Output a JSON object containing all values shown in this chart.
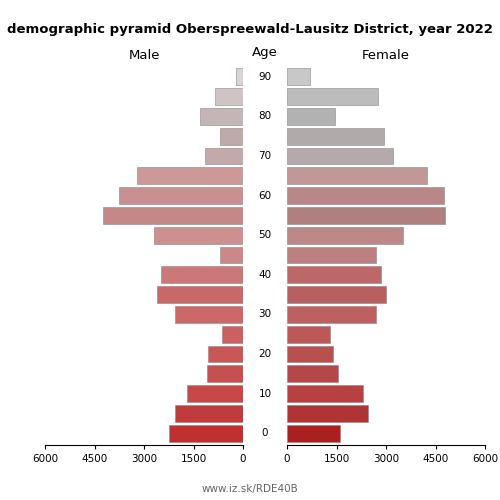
{
  "title": "demographic pyramid Oberspreewald-Lausitz District, year 2022",
  "male_label": "Male",
  "female_label": "Female",
  "age_label": "Age",
  "source": "www.iz.sk/RDE40B",
  "age_groups": [
    0,
    5,
    10,
    15,
    20,
    25,
    30,
    35,
    40,
    45,
    50,
    55,
    60,
    65,
    70,
    75,
    80,
    85,
    90
  ],
  "male_values": [
    2250,
    2050,
    1700,
    1100,
    1050,
    650,
    2050,
    2600,
    2500,
    700,
    2700,
    4250,
    3750,
    3200,
    1150,
    700,
    1300,
    850,
    200
  ],
  "female_values": [
    1600,
    2450,
    2300,
    1550,
    1400,
    1300,
    2700,
    3000,
    2850,
    2700,
    3500,
    4800,
    4750,
    4250,
    3200,
    2950,
    1450,
    2750,
    700
  ],
  "male_colors": [
    "#c03030",
    "#c03c3c",
    "#c84848",
    "#c45050",
    "#c85858",
    "#cc6060",
    "#cc6868",
    "#c86868",
    "#cc7878",
    "#cc8888",
    "#cc9090",
    "#c48888",
    "#c89090",
    "#cc9898",
    "#c2aaaa",
    "#bfaaaa",
    "#c4b6b6",
    "#cfc4c4",
    "#dcd4d4"
  ],
  "female_colors": [
    "#aa2020",
    "#b03434",
    "#b84040",
    "#b44848",
    "#b85050",
    "#bc5858",
    "#bc6060",
    "#b86060",
    "#bc6868",
    "#bc8080",
    "#bc8888",
    "#b08080",
    "#b88888",
    "#c09898",
    "#b4aaaa",
    "#b0aaaa",
    "#b2b2b2",
    "#bcbcbc",
    "#c8c8c8"
  ],
  "xlim": 6000,
  "xticks": [
    0,
    1500,
    3000,
    4500,
    6000
  ],
  "age_label_ticks": [
    0,
    10,
    20,
    30,
    40,
    50,
    60,
    70,
    80,
    90
  ],
  "figsize": [
    5.0,
    5.0
  ],
  "dpi": 100,
  "bar_height": 0.85
}
